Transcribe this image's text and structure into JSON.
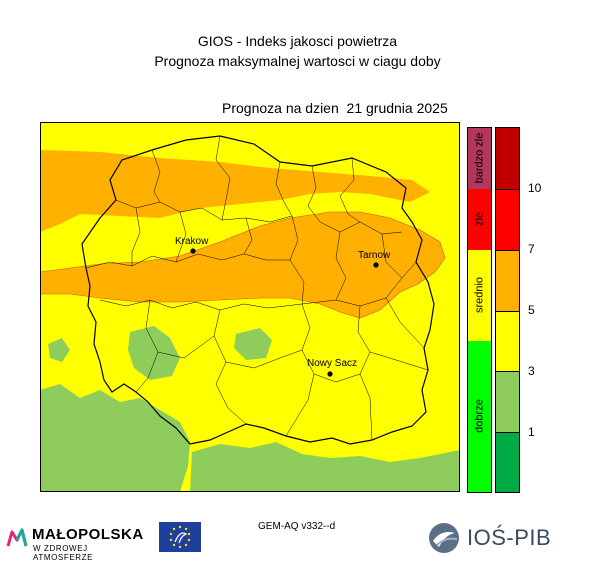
{
  "header": {
    "title": "GIOS - Indeks jakosci powietrza",
    "subtitle": "Prognoza maksymalnej wartosci w ciagu doby",
    "forecast_date": "Prognoza na dzien  21 grudnia 2025"
  },
  "map": {
    "city_labels": [
      "Krakow",
      "Tarnow",
      "Nowy Sacz"
    ],
    "colors": {
      "yellow": "#ffff00",
      "orange": "#ffb000",
      "light_green": "#8ecd5c",
      "boundary": "#000000",
      "contour": "#c85a2a"
    }
  },
  "legend": {
    "categories": [
      "bardzo zle",
      "zle",
      "srednio",
      "dobrze"
    ],
    "category_colors": [
      "#b3375c",
      "#ff0000",
      "#ffff00",
      "#00ff00"
    ],
    "scale_colors": [
      "#00aa44",
      "#8ecd5c",
      "#ffff00",
      "#ffb000",
      "#ff0000",
      "#c00000"
    ],
    "ticks": [
      "1",
      "3",
      "5",
      "7",
      "10"
    ]
  },
  "footer": {
    "model": "GEM-AQ v332--d",
    "malopolska_name": "MAŁOPOLSKA",
    "malopolska_tagline": "W ZDROWEJ ATMOSFERZE",
    "ios_name": "IOŚ-PIB"
  }
}
